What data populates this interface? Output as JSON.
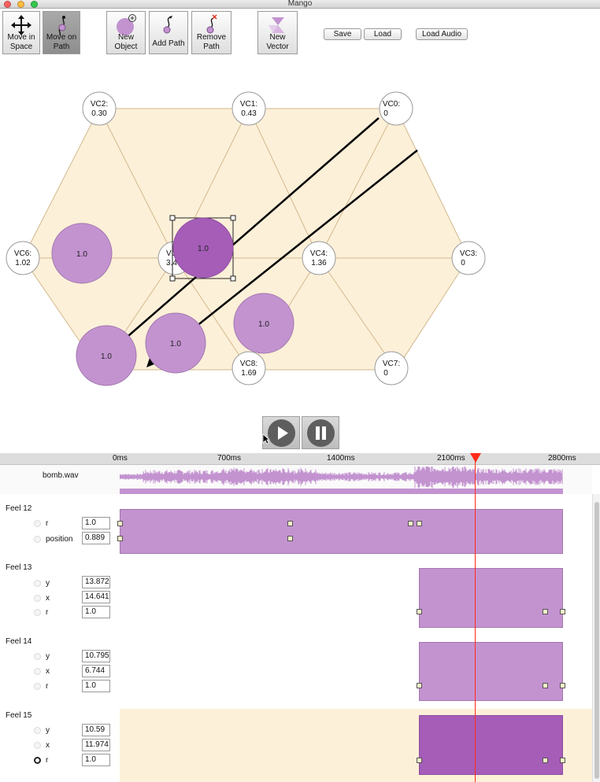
{
  "window": {
    "title": "Mango"
  },
  "toolbar": {
    "move_in_space": "Move in Space",
    "move_on_path": "Move on Path",
    "new_object": "New Object",
    "add_path": "Add Path",
    "remove_path": "Remove Path",
    "new_vector": "New Vector",
    "save": "Save",
    "load": "Load",
    "load_audio": "Load Audio"
  },
  "colors": {
    "hex_fill": "#fdf0d9",
    "hex_line": "#d2b98c",
    "object": "#c393d0",
    "object_selected": "#a55db8",
    "playhead": "#ff2a1a"
  },
  "vectors": [
    {
      "id": "VC2",
      "name": "VC2:",
      "value": "0.30"
    },
    {
      "id": "VC1",
      "name": "VC1:",
      "value": "0.43"
    },
    {
      "id": "VC0",
      "name": "VC0:",
      "value": "0"
    },
    {
      "id": "VC6",
      "name": "VC6:",
      "value": "1.02"
    },
    {
      "id": "VC5",
      "name": "VC",
      "value": "3.4"
    },
    {
      "id": "VC4",
      "name": "VC4:",
      "value": "1.36"
    },
    {
      "id": "VC3",
      "name": "VC3:",
      "value": "0"
    },
    {
      "id": "VC8",
      "name": "VC8:",
      "value": "1.69"
    },
    {
      "id": "VC7",
      "name": "VC7:",
      "value": "0"
    }
  ],
  "objects": [
    {
      "label": "1.0"
    },
    {
      "label": "1.0"
    },
    {
      "label": "1.0"
    },
    {
      "label": "1.0"
    },
    {
      "label": "1.0"
    }
  ],
  "timeline": {
    "ticks": [
      "0ms",
      "700ms",
      "1400ms",
      "2100ms",
      "2800ms"
    ],
    "audio_file": "bomb.wav",
    "feels": [
      {
        "title": "Feel 12",
        "params": [
          {
            "name": "r",
            "value": "1.0"
          },
          {
            "name": "position",
            "value": "0.889"
          }
        ]
      },
      {
        "title": "Feel 13",
        "params": [
          {
            "name": "y",
            "value": "13.872"
          },
          {
            "name": "x",
            "value": "14.641"
          },
          {
            "name": "r",
            "value": "1.0"
          }
        ]
      },
      {
        "title": "Feel 14",
        "params": [
          {
            "name": "y",
            "value": "10.795"
          },
          {
            "name": "x",
            "value": "6.744"
          },
          {
            "name": "r",
            "value": "1.0"
          }
        ]
      },
      {
        "title": "Feel 15",
        "params": [
          {
            "name": "y",
            "value": "10.59"
          },
          {
            "name": "x",
            "value": "11.974"
          },
          {
            "name": "r",
            "value": "1.0"
          }
        ]
      }
    ]
  }
}
